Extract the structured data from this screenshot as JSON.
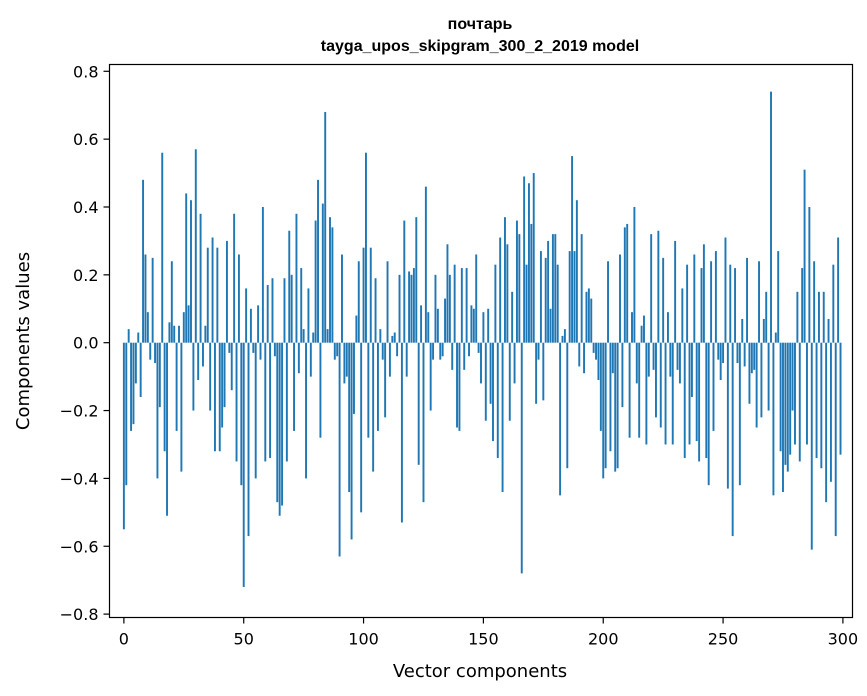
{
  "chart_data": {
    "type": "bar",
    "title": [
      "почтарь",
      "tayga_upos_skipgram_300_2_2019 model"
    ],
    "xlabel": "Vector components",
    "ylabel": "Components values",
    "xlim": [
      -6,
      304
    ],
    "ylim": [
      -0.81,
      0.82
    ],
    "xticks": [
      0,
      50,
      100,
      150,
      200,
      250,
      300
    ],
    "yticks": [
      -0.8,
      -0.6,
      -0.4,
      -0.2,
      0.0,
      0.2,
      0.4,
      0.6,
      0.8
    ],
    "ytick_labels": [
      "−0.8",
      "−0.6",
      "−0.4",
      "−0.2",
      "0.0",
      "0.2",
      "0.4",
      "0.6",
      "0.8"
    ],
    "grid": false,
    "bar_color": "#1f77b4",
    "values": [
      -0.55,
      -0.42,
      0.04,
      -0.26,
      -0.24,
      -0.12,
      0.03,
      -0.16,
      0.48,
      0.26,
      0.09,
      -0.05,
      0.25,
      -0.06,
      -0.4,
      -0.19,
      0.56,
      -0.32,
      -0.51,
      0.06,
      0.24,
      0.05,
      -0.26,
      0.05,
      -0.38,
      0.09,
      0.44,
      0.11,
      0.42,
      -0.2,
      0.57,
      -0.11,
      0.38,
      -0.07,
      0.05,
      0.28,
      -0.2,
      0.31,
      -0.32,
      0.28,
      -0.32,
      -0.25,
      -0.19,
      0.3,
      -0.03,
      -0.14,
      0.38,
      -0.35,
      0.26,
      -0.42,
      -0.72,
      0.16,
      -0.57,
      0.1,
      -0.03,
      -0.4,
      0.11,
      -0.05,
      0.4,
      -0.35,
      0.17,
      -0.34,
      0.19,
      -0.04,
      -0.47,
      -0.51,
      -0.48,
      0.19,
      -0.35,
      0.33,
      0.2,
      -0.26,
      0.38,
      -0.09,
      0.22,
      0.04,
      -0.4,
      0.16,
      -0.1,
      0.03,
      0.36,
      0.48,
      -0.28,
      0.41,
      0.68,
      0.04,
      0.37,
      0.34,
      -0.05,
      -0.04,
      -0.63,
      0.26,
      -0.12,
      -0.1,
      -0.44,
      -0.58,
      -0.21,
      0.08,
      0.24,
      -0.5,
      0.28,
      0.56,
      -0.28,
      0.28,
      -0.38,
      0.19,
      -0.26,
      0.04,
      -0.05,
      -0.22,
      0.24,
      -0.1,
      0.02,
      0.03,
      -0.04,
      0.2,
      -0.53,
      0.36,
      -0.1,
      0.21,
      0.2,
      0.22,
      0.37,
      -0.36,
      0.11,
      -0.47,
      0.46,
      0.09,
      -0.2,
      -0.05,
      0.2,
      0.1,
      -0.05,
      -0.04,
      0.13,
      0.29,
      0.2,
      -0.08,
      0.23,
      -0.25,
      -0.26,
      0.22,
      -0.08,
      0.22,
      -0.04,
      0.11,
      0.1,
      0.26,
      -0.03,
      -0.12,
      0.09,
      -0.23,
      0.1,
      -0.18,
      -0.29,
      0.23,
      -0.34,
      0.31,
      -0.44,
      0.37,
      0.29,
      -0.23,
      0.15,
      -0.12,
      0.36,
      0.32,
      -0.68,
      0.49,
      0.23,
      0.47,
      0.35,
      0.5,
      -0.18,
      -0.05,
      0.27,
      -0.17,
      0.25,
      0.3,
      0.1,
      0.32,
      0.32,
      0.23,
      -0.45,
      0.02,
      0.04,
      -0.37,
      0.27,
      0.55,
      0.27,
      0.42,
      -0.07,
      0.32,
      -0.09,
      0.15,
      0.16,
      0.13,
      -0.03,
      -0.05,
      -0.11,
      -0.26,
      -0.4,
      -0.37,
      0.24,
      -0.32,
      -0.09,
      -0.38,
      -0.37,
      0.26,
      -0.19,
      0.34,
      0.35,
      -0.28,
      0.09,
      0.4,
      -0.12,
      -0.28,
      0.05,
      0.08,
      -0.3,
      -0.1,
      0.32,
      -0.08,
      -0.22,
      0.33,
      -0.25,
      0.25,
      -0.3,
      0.09,
      -0.1,
      -0.3,
      0.3,
      -0.08,
      -0.12,
      0.16,
      -0.34,
      0.23,
      -0.3,
      -0.16,
      0.26,
      -0.29,
      -0.35,
      0.22,
      0.29,
      -0.34,
      -0.42,
      0.24,
      -0.26,
      0.27,
      -0.05,
      -0.11,
      -0.06,
      0.31,
      -0.43,
      0.23,
      -0.57,
      0.22,
      -0.06,
      -0.42,
      0.07,
      -0.07,
      0.25,
      -0.18,
      -0.09,
      -0.08,
      -0.25,
      0.24,
      -0.22,
      0.07,
      0.15,
      -0.2,
      0.74,
      -0.45,
      0.03,
      0.27,
      -0.32,
      -0.44,
      -0.36,
      -0.38,
      -0.33,
      -0.2,
      -0.3,
      0.15,
      -0.35,
      0.22,
      0.51,
      -0.3,
      0.4,
      -0.61,
      0.24,
      -0.34,
      0.15,
      -0.37,
      0.15,
      -0.47,
      0.07,
      -0.41,
      0.23,
      -0.57,
      0.31,
      -0.33
    ]
  }
}
